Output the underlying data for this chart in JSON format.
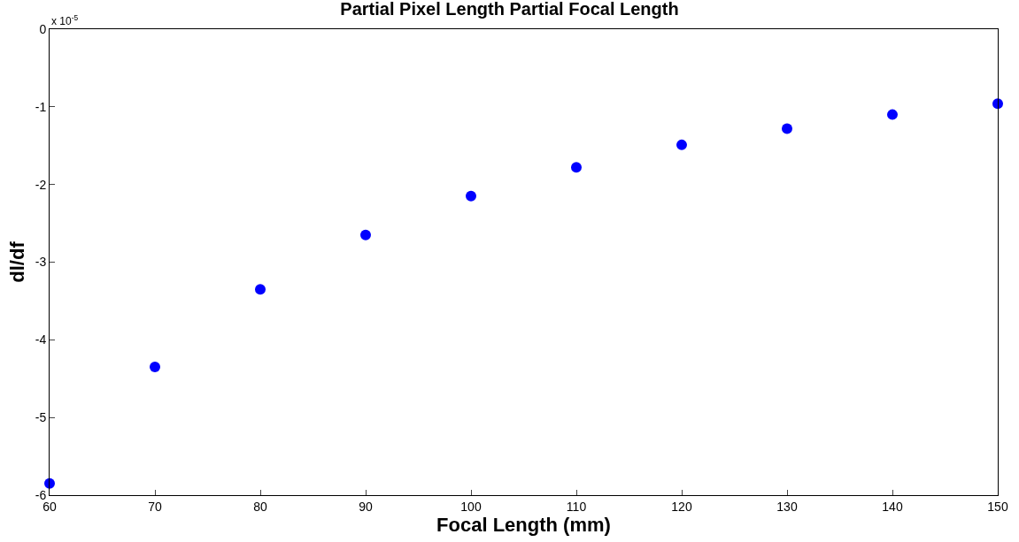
{
  "chart_data": {
    "type": "scatter",
    "title": "Partial Pixel Length Partial Focal Length",
    "xlabel": "Focal Length (mm)",
    "ylabel": "dl/df",
    "annotations": [
      "x 10$^{-5}$"
    ],
    "x": [
      60,
      70,
      80,
      90,
      100,
      110,
      120,
      130,
      140,
      150
    ],
    "series": [
      {
        "color": "#0000ff",
        "values": [
          -5.85,
          -4.35,
          -3.35,
          -2.65,
          -2.15,
          -1.78,
          -1.49,
          -1.28,
          -1.1,
          -0.96
        ]
      }
    ],
    "xlim": [
      60,
      150
    ],
    "xticks": [
      60,
      70,
      80,
      90,
      100,
      110,
      120,
      130,
      140,
      150
    ],
    "ylim": [
      -6,
      0
    ],
    "yticks": [
      -6,
      -5,
      -4,
      -3,
      -2,
      -1,
      0
    ]
  }
}
